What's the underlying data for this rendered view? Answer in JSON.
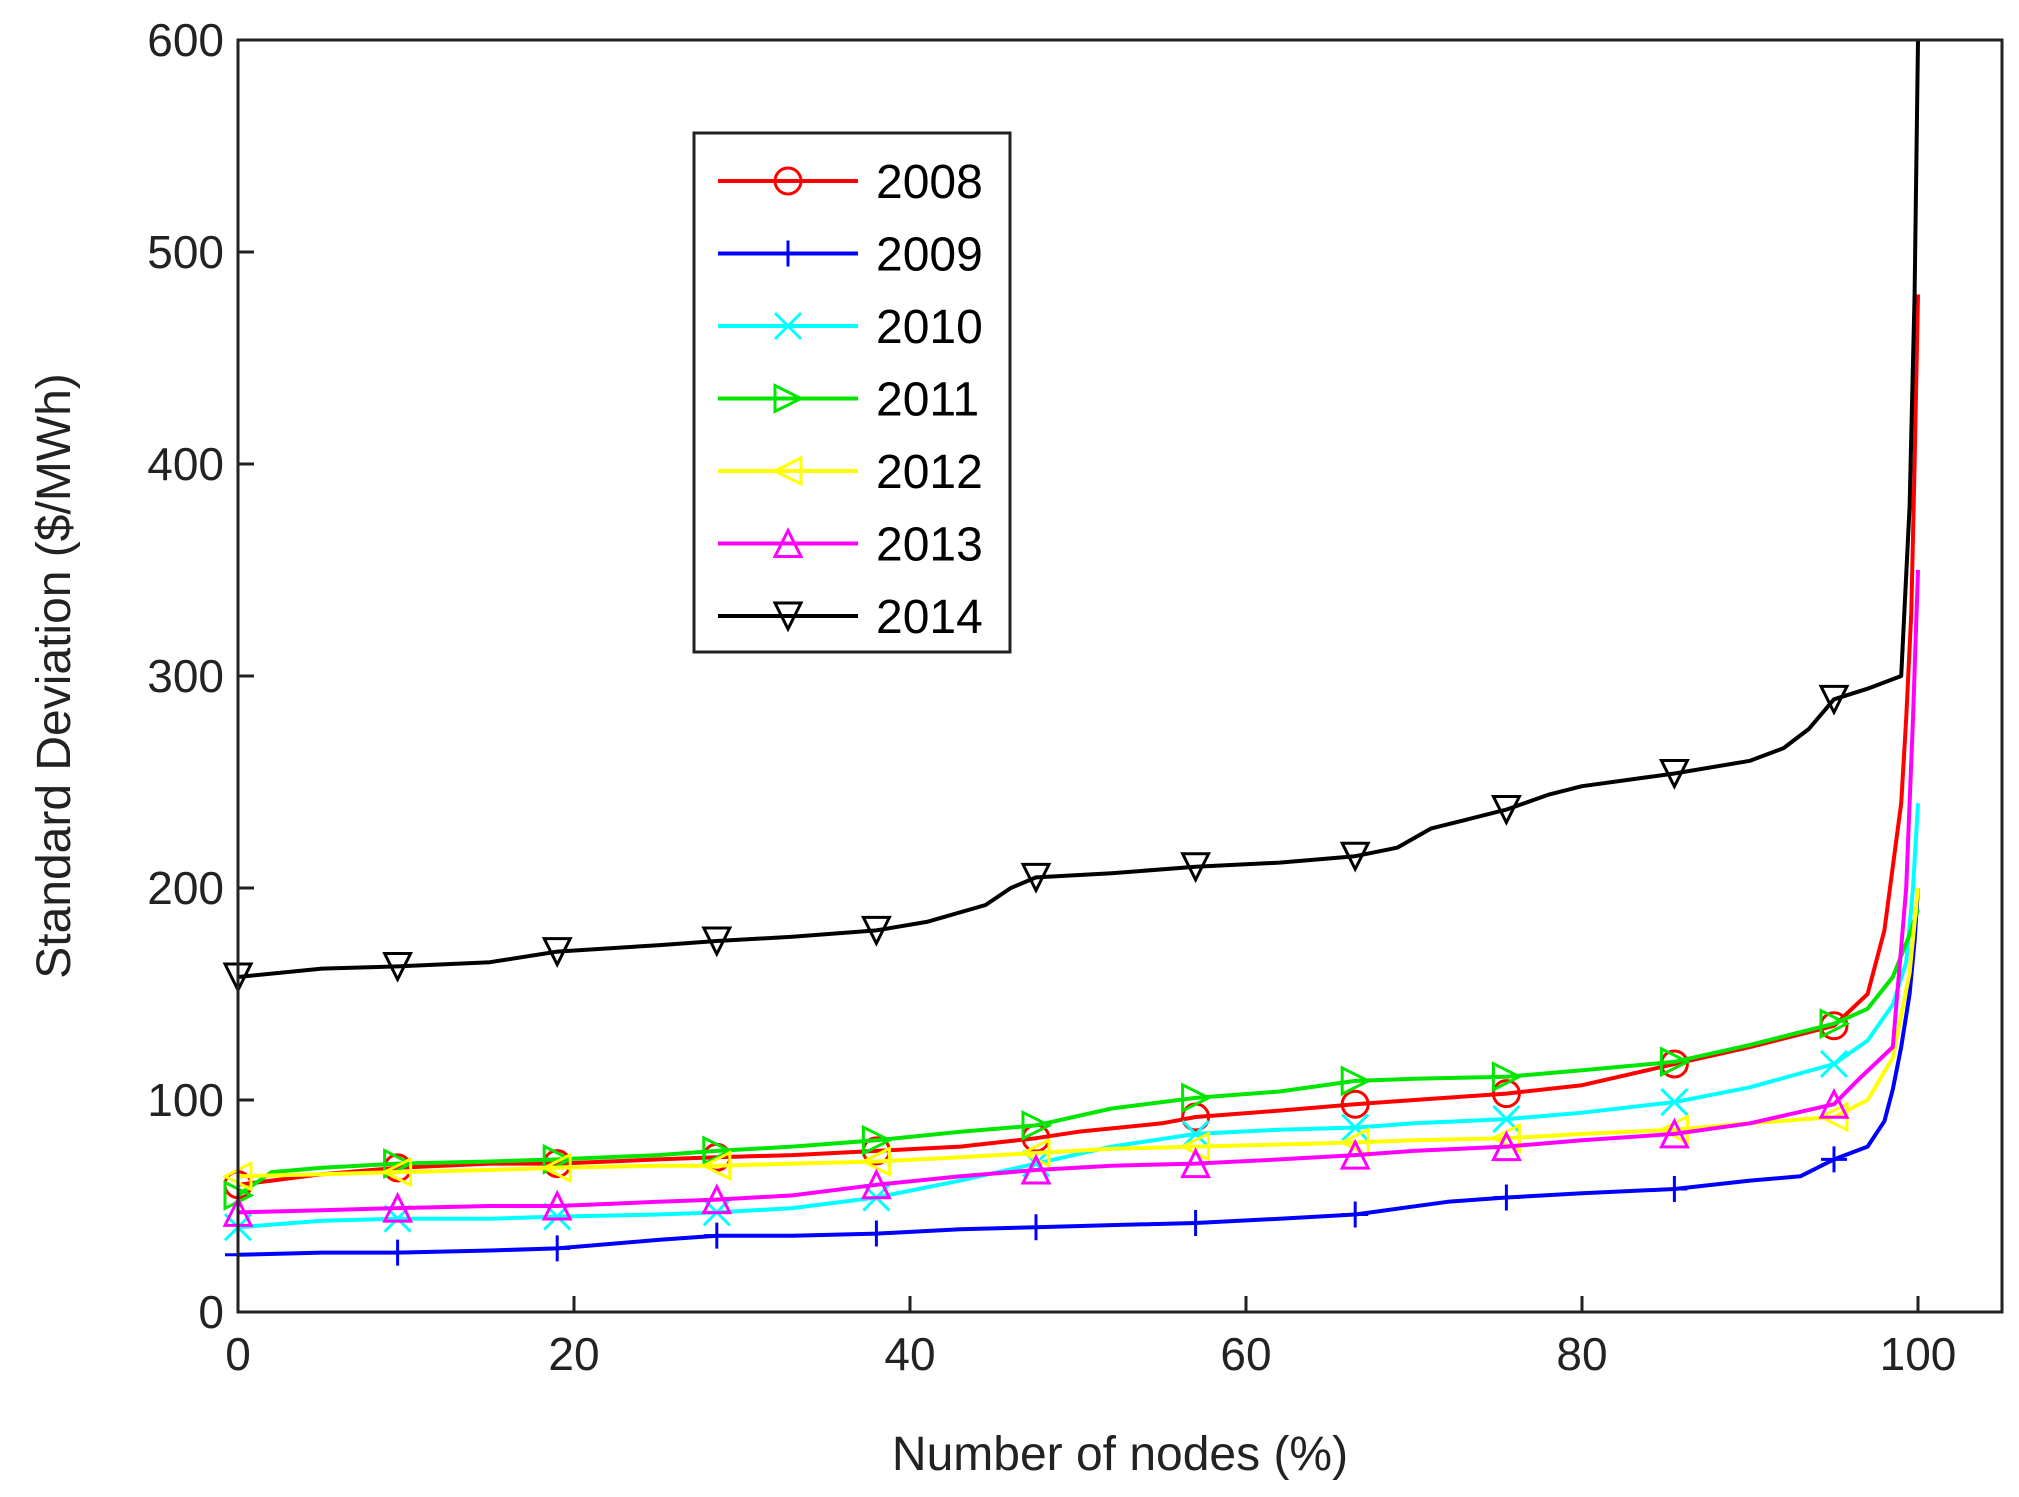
{
  "chart_data": {
    "type": "line",
    "title": "",
    "xlabel": "Number of nodes (%)",
    "ylabel": "Standard Deviation ($/MWh)",
    "xlim": [
      0,
      105
    ],
    "ylim": [
      0,
      600
    ],
    "xticks": [
      0,
      20,
      40,
      60,
      80,
      100
    ],
    "yticks": [
      0,
      100,
      200,
      300,
      400,
      500,
      600
    ],
    "xtick_labels": [
      "0",
      "20",
      "40",
      "60",
      "80",
      "100"
    ],
    "ytick_labels": [
      "0",
      "100",
      "200",
      "300",
      "400",
      "500",
      "600"
    ],
    "grid": false,
    "legend_position": "top-left-inside",
    "series": [
      {
        "name": "2008",
        "color": "#ff0000",
        "marker": "circle",
        "x": [
          0,
          2,
          5,
          9.5,
          15,
          19,
          25,
          28.5,
          33,
          38,
          43,
          47.5,
          50,
          55,
          57,
          62,
          66.5,
          70,
          75.5,
          80,
          85.5,
          90,
          95,
          97,
          98,
          98.5,
          99,
          99.3,
          99.6,
          99.8,
          100
        ],
        "y": [
          60,
          62,
          65,
          68,
          70,
          70,
          72,
          73,
          74,
          76,
          78,
          82,
          85,
          89,
          92,
          95,
          98,
          100,
          103,
          107,
          117,
          125,
          135,
          150,
          180,
          210,
          240,
          280,
          330,
          400,
          480
        ],
        "markers_x": [
          0,
          9.5,
          19,
          28.5,
          38,
          47.5,
          57,
          66.5,
          75.5,
          85.5,
          95
        ],
        "markers_y": [
          60,
          68,
          70,
          73,
          76,
          82,
          92,
          98,
          103,
          117,
          135
        ]
      },
      {
        "name": "2009",
        "color": "#0000ff",
        "marker": "plus",
        "x": [
          0,
          5,
          9.5,
          15,
          19,
          25,
          28.5,
          33,
          38,
          43,
          47.5,
          52,
          57,
          62,
          66.5,
          72,
          75.5,
          80,
          85.5,
          90,
          93,
          95,
          97,
          98,
          98.5,
          99,
          99.5,
          99.8,
          100
        ],
        "y": [
          27,
          28,
          28,
          29,
          30,
          34,
          36,
          36,
          37,
          39,
          40,
          41,
          42,
          44,
          46,
          52,
          54,
          56,
          58,
          62,
          64,
          72,
          78,
          90,
          105,
          125,
          150,
          175,
          200
        ],
        "markers_x": [
          0,
          9.5,
          19,
          28.5,
          38,
          47.5,
          57,
          66.5,
          75.5,
          85.5,
          95
        ],
        "markers_y": [
          27,
          28,
          30,
          36,
          37,
          40,
          42,
          46,
          54,
          58,
          72
        ]
      },
      {
        "name": "2010",
        "color": "#00ffff",
        "marker": "x",
        "x": [
          0,
          5,
          9.5,
          15,
          19,
          25,
          28.5,
          33,
          38,
          43,
          47.5,
          52,
          57,
          62,
          66.5,
          70,
          75.5,
          80,
          85.5,
          90,
          95,
          97,
          98.5,
          99.3,
          99.7,
          100
        ],
        "y": [
          40,
          43,
          44,
          44,
          45,
          46,
          47,
          49,
          54,
          62,
          70,
          78,
          84,
          86,
          87,
          89,
          91,
          94,
          99,
          106,
          117,
          128,
          145,
          165,
          200,
          240
        ],
        "markers_x": [
          0,
          9.5,
          19,
          28.5,
          38,
          47.5,
          57,
          66.5,
          75.5,
          85.5,
          95
        ],
        "markers_y": [
          40,
          44,
          45,
          47,
          54,
          70,
          84,
          87,
          91,
          99,
          117
        ]
      },
      {
        "name": "2011",
        "color": "#00e600",
        "marker": "triangle-right",
        "x": [
          0,
          2,
          5,
          9.5,
          15,
          19,
          25,
          28.5,
          33,
          38,
          43,
          47.5,
          52,
          57,
          62,
          66.5,
          70,
          75.5,
          80,
          85.5,
          90,
          95,
          97,
          98.5,
          99.5,
          100
        ],
        "y": [
          55,
          66,
          68,
          70,
          71,
          72,
          74,
          76,
          78,
          81,
          85,
          88,
          96,
          101,
          104,
          109,
          110,
          111,
          114,
          118,
          126,
          136,
          143,
          158,
          178,
          190
        ],
        "markers_x": [
          0,
          9.5,
          19,
          28.5,
          38,
          47.5,
          57,
          66.5,
          75.5,
          85.5,
          95
        ],
        "markers_y": [
          55,
          70,
          72,
          76,
          81,
          88,
          101,
          109,
          111,
          118,
          136
        ]
      },
      {
        "name": "2012",
        "color": "#ffff00",
        "marker": "triangle-left",
        "x": [
          0,
          5,
          9.5,
          15,
          19,
          25,
          28.5,
          33,
          38,
          43,
          47.5,
          52,
          57,
          62,
          66.5,
          70,
          75.5,
          80,
          85.5,
          90,
          95,
          97,
          98.5,
          99.5,
          100
        ],
        "y": [
          64,
          65,
          66,
          67,
          68,
          69,
          69,
          70,
          71,
          73,
          75,
          77,
          78,
          79,
          80,
          81,
          82,
          84,
          86,
          89,
          92,
          100,
          120,
          160,
          200
        ],
        "markers_x": [
          0,
          9.5,
          19,
          28.5,
          38,
          47.5,
          57,
          66.5,
          75.5,
          85.5,
          95
        ],
        "markers_y": [
          64,
          66,
          68,
          69,
          71,
          75,
          78,
          80,
          82,
          86,
          92
        ]
      },
      {
        "name": "2013",
        "color": "#ff00ff",
        "marker": "triangle-up",
        "x": [
          0,
          5,
          9.5,
          15,
          19,
          25,
          28.5,
          33,
          38,
          43,
          47.5,
          52,
          57,
          62,
          66.5,
          70,
          75.5,
          80,
          85.5,
          90,
          95,
          96.5,
          98.5,
          99.3,
          99.7,
          100
        ],
        "y": [
          47,
          48,
          49,
          50,
          50,
          52,
          53,
          55,
          60,
          64,
          67,
          69,
          70,
          72,
          74,
          76,
          78,
          81,
          84,
          89,
          98,
          110,
          125,
          200,
          280,
          350
        ],
        "markers_x": [
          0,
          9.5,
          19,
          28.5,
          38,
          47.5,
          57,
          66.5,
          75.5,
          85.5,
          95
        ],
        "markers_y": [
          47,
          49,
          50,
          53,
          60,
          67,
          70,
          74,
          78,
          84,
          98
        ]
      },
      {
        "name": "2014",
        "color": "#000000",
        "marker": "triangle-down",
        "x": [
          0,
          5,
          9.5,
          15,
          19,
          25,
          28.5,
          33,
          38,
          41,
          44.5,
          46,
          47.5,
          52,
          57,
          62,
          66.5,
          69,
          71,
          73,
          75.5,
          78,
          80,
          85.5,
          90,
          92,
          93.5,
          95,
          97,
          99,
          99.5,
          99.8,
          100
        ],
        "y": [
          158,
          162,
          163,
          165,
          170,
          173,
          175,
          177,
          180,
          184,
          192,
          200,
          205,
          207,
          210,
          212,
          215,
          219,
          228,
          232,
          237,
          244,
          248,
          254,
          260,
          266,
          275,
          289,
          294,
          300,
          380,
          480,
          600
        ],
        "markers_x": [
          0,
          9.5,
          19,
          28.5,
          38,
          47.5,
          57,
          66.5,
          75.5,
          85.5,
          95
        ],
        "markers_y": [
          158,
          163,
          170,
          175,
          180,
          205,
          210,
          215,
          237,
          254,
          289
        ]
      }
    ]
  }
}
